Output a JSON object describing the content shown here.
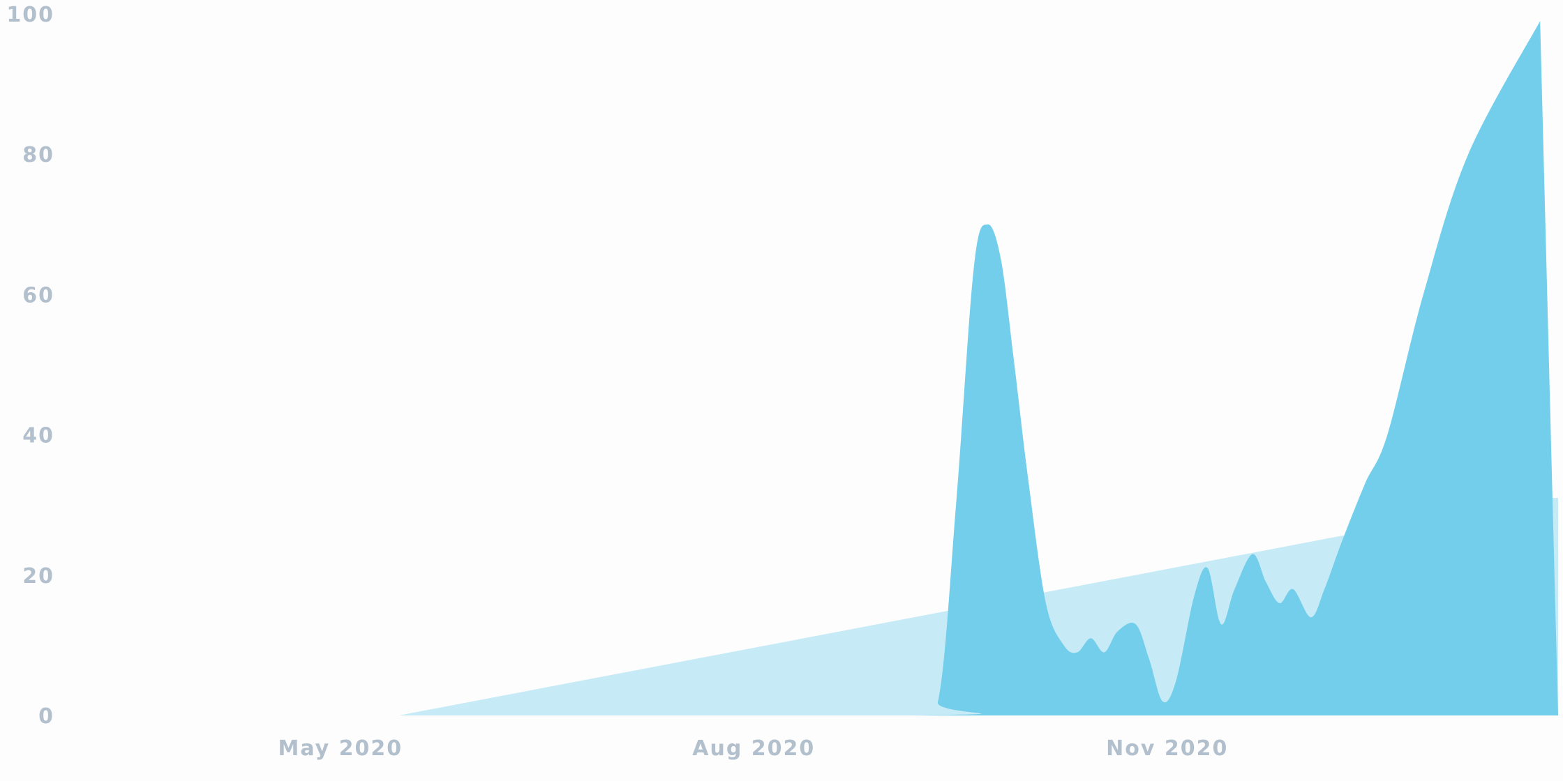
{
  "chart_data": {
    "type": "area",
    "title": "",
    "xlabel": "",
    "ylabel": "",
    "xlim": [
      "2020-03-01",
      "2021-01-27"
    ],
    "ylim": [
      0,
      100
    ],
    "y_ticks": [
      0,
      20,
      40,
      60,
      80,
      100
    ],
    "y_tick_labels": [
      "0",
      "20",
      "40",
      "60",
      "80",
      "100"
    ],
    "x_ticks": [
      "2020-05-01",
      "2020-08-01",
      "2020-11-01"
    ],
    "x_tick_labels": [
      "May 2020",
      "Aug 2020",
      "Nov 2020"
    ],
    "grid": false,
    "legend": "none",
    "colors": {
      "trend": "#c6eaf6",
      "series": "#72ceea",
      "axis_text": "#b2bfcc"
    },
    "series": [
      {
        "role": "trend",
        "points": [
          {
            "x": "2020-03-01",
            "y": 0
          },
          {
            "x": "2020-05-14",
            "y": 0
          },
          {
            "x": "2021-01-23",
            "y": 31
          },
          {
            "x": "2021-01-27",
            "y": 31
          }
        ]
      },
      {
        "role": "main",
        "points": [
          {
            "x": "2020-03-01",
            "y": 0
          },
          {
            "x": "2020-09-05",
            "y": 0
          },
          {
            "x": "2020-09-11",
            "y": 2
          },
          {
            "x": "2020-09-15",
            "y": 30
          },
          {
            "x": "2020-09-19",
            "y": 64
          },
          {
            "x": "2020-09-22",
            "y": 70
          },
          {
            "x": "2020-09-25",
            "y": 65
          },
          {
            "x": "2020-09-28",
            "y": 50
          },
          {
            "x": "2020-10-01",
            "y": 34
          },
          {
            "x": "2020-10-05",
            "y": 16
          },
          {
            "x": "2020-10-09",
            "y": 10
          },
          {
            "x": "2020-10-12",
            "y": 9
          },
          {
            "x": "2020-10-15",
            "y": 11
          },
          {
            "x": "2020-10-18",
            "y": 9
          },
          {
            "x": "2020-10-21",
            "y": 12
          },
          {
            "x": "2020-10-25",
            "y": 13
          },
          {
            "x": "2020-10-28",
            "y": 8
          },
          {
            "x": "2020-10-31",
            "y": 2
          },
          {
            "x": "2020-11-03",
            "y": 5
          },
          {
            "x": "2020-11-07",
            "y": 17
          },
          {
            "x": "2020-11-10",
            "y": 21
          },
          {
            "x": "2020-11-13",
            "y": 13
          },
          {
            "x": "2020-11-16",
            "y": 18
          },
          {
            "x": "2020-11-20",
            "y": 23
          },
          {
            "x": "2020-11-23",
            "y": 19
          },
          {
            "x": "2020-11-26",
            "y": 16
          },
          {
            "x": "2020-11-29",
            "y": 18
          },
          {
            "x": "2020-12-03",
            "y": 14
          },
          {
            "x": "2020-12-06",
            "y": 18
          },
          {
            "x": "2020-12-10",
            "y": 25
          },
          {
            "x": "2020-12-15",
            "y": 33
          },
          {
            "x": "2020-12-20",
            "y": 40
          },
          {
            "x": "2020-12-28",
            "y": 60
          },
          {
            "x": "2021-01-07",
            "y": 80
          },
          {
            "x": "2021-01-23",
            "y": 99
          },
          {
            "x": "2021-01-27",
            "y": 0
          }
        ]
      }
    ]
  }
}
